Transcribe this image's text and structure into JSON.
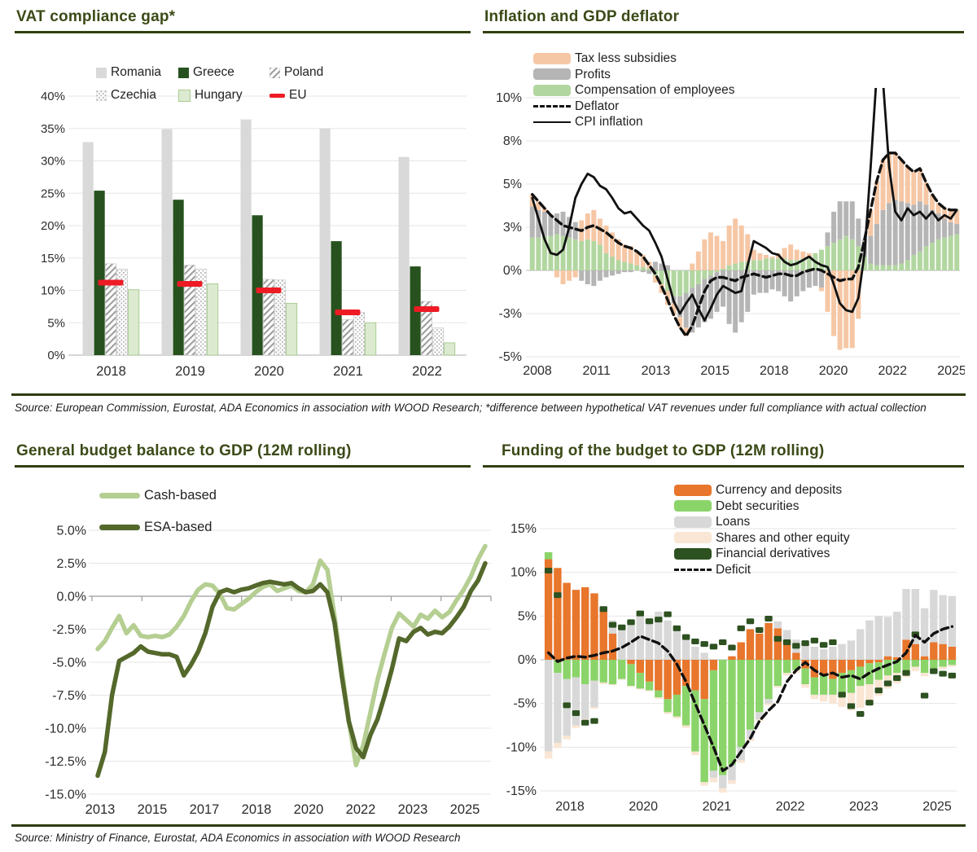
{
  "header": {
    "title_top_left": "VAT compliance gap*",
    "title_top_right": "Inflation and GDP deflator",
    "title_bottom_left": "General budget balance to GDP (12M rolling)",
    "title_bottom_right": "Funding of the budget to GDP (12M rolling)"
  },
  "sources": {
    "top": "Source: European Commission, Eurostat, ADA Economics in association with WOOD Research; *difference between hypothetical VAT revenues under full compliance with actual collection",
    "bottom": "Source: Ministry of Finance, Eurostat, ADA Economics in association with WOOD Research"
  },
  "colors": {
    "title_green": "#3b4a17",
    "rule_green": "#2e3c10",
    "gridline": "#e6e6e6",
    "axis_text": "#2e2e2e"
  },
  "chart_data": [
    {
      "id": "vat",
      "type": "bar",
      "title": "VAT compliance gap*",
      "ylim": [
        0,
        40
      ],
      "ytick_step": 5,
      "ytick_labels": [
        "40%",
        "35%",
        "30%",
        "25%",
        "20%",
        "15%",
        "10%",
        "5%",
        "0%"
      ],
      "categories": [
        "2018",
        "2019",
        "2020",
        "2021",
        "2022"
      ],
      "series": [
        {
          "name": "Romania",
          "swatch": "rect",
          "color": "#d9d9d9",
          "values": [
            32.9,
            34.9,
            36.4,
            35.0,
            30.6
          ]
        },
        {
          "name": "Greece",
          "swatch": "rect",
          "color": "#27521f",
          "values": [
            25.4,
            24.0,
            21.6,
            17.6,
            13.7
          ]
        },
        {
          "name": "Poland",
          "swatch": "hatch",
          "color": "#9d9d9d",
          "values": [
            14.1,
            13.9,
            11.7,
            5.5,
            8.3
          ]
        },
        {
          "name": "Czechia",
          "swatch": "dots",
          "color": "#b3b3b3",
          "values": [
            13.3,
            13.3,
            11.6,
            6.6,
            4.2
          ]
        },
        {
          "name": "Hungary",
          "swatch": "rect",
          "color": "#dcead0",
          "stroke": "#a9cc93",
          "values": [
            10.1,
            11.0,
            8.0,
            5.0,
            1.9
          ]
        },
        {
          "name": "EU",
          "swatch": "eu-dash",
          "type": "dash-marker",
          "color": "#ee1b24",
          "values": [
            11.2,
            11.0,
            10.0,
            6.6,
            7.1
          ]
        }
      ],
      "legend_position": "top-inside"
    },
    {
      "id": "inflation",
      "type": "stacked-bar-line",
      "title": "Inflation and GDP deflator",
      "x_start": 2008,
      "x_end": 2025.5,
      "frequency": "quarterly",
      "ylim": [
        -5,
        10
      ],
      "gridlines": [
        {
          "v": 10,
          "label": "10%"
        },
        {
          "v": 7.5,
          "label": "8%"
        },
        {
          "v": 5,
          "label": "5%"
        },
        {
          "v": 2.5,
          "label": "3%"
        },
        {
          "v": 0,
          "label": "0%"
        },
        {
          "v": -2.5,
          "label": "-3%"
        },
        {
          "v": -5,
          "label": "-5%"
        }
      ],
      "xticks": [
        "2008",
        "2011",
        "2013",
        "2015",
        "2018",
        "2020",
        "2022",
        "2025"
      ],
      "stack_draw_order": [
        2,
        1,
        0
      ],
      "bar_series": [
        {
          "name": "Tax less subsidies",
          "color": "#f6c7a5",
          "values": [
            0.7,
            0.5,
            0.2,
            0.0,
            -0.4,
            -0.8,
            -0.6,
            -0.4,
            1.2,
            1.5,
            1.8,
            1.5,
            1.6,
            1.4,
            1.2,
            1.0,
            1.0,
            0.8,
            0.7,
            0.4,
            -0.4,
            -0.5,
            -0.8,
            -0.7,
            -0.6,
            -0.5,
            0.4,
            1.1,
            1.8,
            2.2,
            2.0,
            1.6,
            2.3,
            2.6,
            2.1,
            1.6,
            0.6,
            0.4,
            0.2,
            0.1,
            0.3,
            0.6,
            0.9,
            0.6,
            0.4,
            0.2,
            0.0,
            -0.2,
            -2.4,
            -3.8,
            -4.6,
            -4.5,
            -4.5,
            -2.8,
            0.0,
            1.5,
            2.5,
            2.9,
            2.9,
            2.7,
            2.4,
            2.1,
            1.9,
            1.9,
            1.3,
            0.9,
            0.6,
            0.6,
            0.7,
            0.8
          ]
        },
        {
          "name": "Profits",
          "color": "#b5b5b5",
          "values": [
            1.8,
            1.6,
            1.4,
            1.2,
            1.2,
            1.4,
            1.2,
            1.0,
            -0.6,
            -0.8,
            -0.9,
            -0.6,
            -0.4,
            -0.3,
            -0.2,
            -0.1,
            -0.1,
            0.0,
            -0.1,
            -0.2,
            0.5,
            0.4,
            0.3,
            -0.4,
            -1.2,
            -2.0,
            -2.6,
            -2.5,
            -2.5,
            -2.5,
            -2.3,
            -2.1,
            -3.1,
            -3.6,
            -3.0,
            -2.4,
            -1.4,
            -1.3,
            -1.3,
            -1.1,
            -1.2,
            -1.5,
            -1.8,
            -1.5,
            -1.2,
            -1.0,
            -0.9,
            -1.0,
            0.8,
            1.8,
            2.2,
            2.0,
            2.2,
            1.6,
            1.0,
            1.6,
            2.4,
            3.2,
            3.6,
            3.8,
            3.6,
            3.3,
            2.9,
            2.9,
            2.4,
            1.9,
            1.5,
            1.1,
            0.8,
            0.6
          ]
        },
        {
          "name": "Compensation of employees",
          "color": "#b2d6a0",
          "values": [
            1.9,
            1.9,
            2.0,
            2.0,
            2.1,
            2.0,
            1.9,
            1.8,
            1.7,
            1.8,
            1.7,
            1.5,
            1.0,
            0.8,
            0.6,
            0.5,
            0.4,
            0.3,
            0.2,
            0.1,
            -0.3,
            -0.8,
            -1.2,
            -1.5,
            -1.5,
            -1.3,
            -1.0,
            -0.8,
            -0.5,
            -0.3,
            -0.1,
            0.1,
            0.3,
            0.4,
            0.5,
            0.5,
            0.6,
            0.6,
            0.7,
            0.7,
            0.7,
            0.7,
            0.6,
            0.6,
            0.7,
            0.8,
            1.0,
            1.2,
            1.4,
            1.6,
            1.8,
            2.0,
            1.8,
            1.4,
            0.8,
            0.4,
            0.3,
            0.3,
            0.3,
            0.3,
            0.4,
            0.6,
            0.9,
            1.1,
            1.4,
            1.6,
            1.8,
            1.9,
            2.0,
            2.1
          ]
        }
      ],
      "line_series": [
        {
          "name": "Deflator",
          "style": "dashed",
          "color": "#111111",
          "values": [
            4.4,
            4.0,
            3.6,
            3.2,
            2.9,
            2.6,
            2.5,
            2.4,
            2.3,
            2.5,
            2.6,
            2.4,
            2.2,
            1.9,
            1.6,
            1.4,
            1.3,
            1.1,
            0.8,
            0.3,
            -0.2,
            -0.9,
            -1.7,
            -2.6,
            -3.3,
            -3.8,
            -3.2,
            -2.2,
            -1.2,
            -0.6,
            -0.4,
            -0.4,
            -0.5,
            -0.6,
            -0.4,
            -0.3,
            -0.2,
            -0.3,
            -0.4,
            -0.3,
            -0.2,
            -0.2,
            -0.3,
            -0.3,
            -0.1,
            0.0,
            0.1,
            0.0,
            -0.2,
            -0.4,
            -0.6,
            -0.5,
            -0.5,
            0.2,
            1.8,
            3.5,
            5.2,
            6.4,
            6.8,
            6.8,
            6.4,
            6.0,
            5.7,
            5.9,
            5.1,
            4.4,
            3.9,
            3.6,
            3.5,
            3.5
          ]
        },
        {
          "name": "CPI inflation",
          "style": "solid",
          "color": "#111111",
          "values": [
            4.2,
            3.0,
            1.8,
            1.0,
            0.9,
            1.2,
            2.5,
            4.2,
            5.0,
            5.6,
            5.4,
            4.9,
            4.7,
            4.2,
            3.6,
            3.3,
            3.4,
            3.0,
            2.6,
            2.3,
            1.6,
            0.8,
            -0.5,
            -1.8,
            -2.5,
            -1.9,
            -1.4,
            -2.2,
            -2.9,
            -2.2,
            -1.4,
            -0.9,
            -1.1,
            -1.3,
            -1.2,
            0.3,
            1.7,
            1.5,
            1.3,
            1.0,
            0.9,
            0.5,
            0.3,
            0.4,
            0.6,
            0.8,
            0.5,
            0.3,
            0.2,
            -0.8,
            -1.9,
            -2.3,
            -2.4,
            -1.6,
            1.0,
            6.0,
            11.5,
            11.0,
            6.0,
            3.4,
            2.9,
            3.6,
            3.2,
            3.4,
            3.0,
            3.4,
            2.9,
            3.2,
            3.0,
            3.5
          ]
        }
      ],
      "legend_position": "top-left-inside"
    },
    {
      "id": "balance",
      "type": "line",
      "title": "General budget balance to GDP (12M rolling)",
      "x_start": 2013,
      "x_end": 2025.25,
      "frequency": "quarterly",
      "ylim": [
        -15,
        5
      ],
      "ytick_labels": [
        "5.0%",
        "2.5%",
        "0.0%",
        "-2.5%",
        "-5.0%",
        "-7.5%",
        "-10.0%",
        "-12.5%",
        "-15.0%"
      ],
      "xticks": [
        "2013",
        "2015",
        "2017",
        "2018",
        "2020",
        "2022",
        "2023",
        "2025"
      ],
      "series": [
        {
          "name": "Cash-based",
          "color": "#b5ce92",
          "values": [
            -4.0,
            -3.4,
            -2.4,
            -1.5,
            -2.8,
            -2.2,
            -3.0,
            -3.1,
            -3.0,
            -3.1,
            -2.9,
            -2.3,
            -1.5,
            -0.4,
            0.5,
            0.9,
            0.8,
            0.2,
            -0.9,
            -1.0,
            -0.6,
            -0.2,
            0.3,
            0.7,
            0.9,
            0.4,
            0.6,
            0.8,
            0.4,
            0.3,
            0.9,
            2.7,
            2.0,
            -1.5,
            -5.5,
            -9.5,
            -12.8,
            -11.3,
            -8.8,
            -6.3,
            -4.3,
            -2.4,
            -1.3,
            -1.8,
            -2.3,
            -1.4,
            -1.7,
            -1.1,
            -1.6,
            -1.2,
            -0.3,
            0.5,
            1.5,
            2.8,
            3.8
          ]
        },
        {
          "name": "ESA-based",
          "color": "#54682b",
          "values": [
            -13.6,
            -11.8,
            -7.5,
            -4.9,
            -4.6,
            -4.3,
            -3.8,
            -4.2,
            -4.3,
            -4.4,
            -4.4,
            -4.6,
            -6.0,
            -5.2,
            -4.2,
            -2.8,
            -0.8,
            0.3,
            0.5,
            0.3,
            0.5,
            0.6,
            0.8,
            1.0,
            1.1,
            1.0,
            0.9,
            1.0,
            0.6,
            0.3,
            0.4,
            0.9,
            0.3,
            -2.0,
            -6.0,
            -9.5,
            -11.5,
            -12.2,
            -10.5,
            -9.3,
            -7.5,
            -5.5,
            -3.2,
            -3.4,
            -2.7,
            -2.4,
            -2.9,
            -2.7,
            -2.8,
            -2.3,
            -1.6,
            -0.8,
            0.4,
            1.2,
            2.5
          ]
        }
      ],
      "legend_position": "top-left-inside"
    },
    {
      "id": "funding",
      "type": "stacked-bar-line",
      "title": "Funding of the budget to GDP (12M rolling)",
      "x_start": 2018,
      "x_end": 2025.4,
      "frequency": "bi-monthly",
      "ylim": [
        -15,
        15
      ],
      "gridlines": [
        {
          "v": 15,
          "label": "15%"
        },
        {
          "v": 10,
          "label": "10%"
        },
        {
          "v": 5,
          "label": "5%"
        },
        {
          "v": 0,
          "label": "0%"
        },
        {
          "v": -5,
          "label": "-5%"
        },
        {
          "v": -10,
          "label": "-10%"
        },
        {
          "v": -15,
          "label": "-15%"
        }
      ],
      "xticks": [
        "2018",
        "2020",
        "2021",
        "2022",
        "2023",
        "2025"
      ],
      "stack_draw_order": [
        0,
        1,
        2,
        3
      ],
      "bar_series": [
        {
          "name": "Currency and deposits",
          "color": "#e8762c",
          "values": [
            11.5,
            10.5,
            8.8,
            8.0,
            8.3,
            7.6,
            5.6,
            3.0,
            0.0,
            -0.5,
            -1.5,
            -2.5,
            -3.5,
            -4.5,
            -4.0,
            -3.0,
            -3.5,
            -4.5,
            -1.2,
            0.0,
            0.4,
            2.0,
            3.5,
            3.0,
            4.2,
            3.6,
            2.2,
            0.8,
            -1.0,
            -2.0,
            -1.8,
            -2.2,
            -1.5,
            -1.2,
            -0.8,
            -0.4,
            -0.3,
            0.4,
            0.3,
            2.3,
            1.8,
            0.4,
            2.0,
            1.8,
            1.5
          ]
        },
        {
          "name": "Debt securities",
          "color": "#8bd46a",
          "values": [
            0.8,
            -1.5,
            -2.2,
            -2.0,
            -2.8,
            -2.4,
            -2.6,
            -2.8,
            -2.2,
            -2.5,
            -1.8,
            -1.0,
            -0.8,
            -1.5,
            -2.5,
            -4.5,
            -7.0,
            -9.5,
            -11.5,
            -13.2,
            -12.0,
            -10.0,
            -8.0,
            -6.0,
            -4.5,
            -3.0,
            -1.5,
            -1.2,
            -1.8,
            -2.0,
            -2.2,
            -1.8,
            -2.4,
            -2.6,
            -2.2,
            -2.4,
            -2.0,
            -1.8,
            -1.5,
            -1.2,
            -0.8,
            -1.5,
            -1.0,
            -0.8,
            -0.6
          ]
        },
        {
          "name": "Loans",
          "color": "#d8d8d8",
          "values": [
            -10.5,
            -8.0,
            -6.5,
            -5.5,
            -4.0,
            -3.0,
            0.5,
            1.5,
            3.5,
            4.5,
            5.2,
            4.8,
            5.5,
            4.5,
            3.5,
            2.5,
            1.5,
            0.8,
            -0.8,
            -1.5,
            -1.8,
            -1.5,
            -1.0,
            -0.8,
            -0.5,
            0.8,
            1.2,
            1.5,
            1.8,
            1.5,
            1.2,
            1.5,
            1.8,
            2.2,
            3.5,
            4.5,
            5.0,
            4.5,
            5.2,
            5.8,
            6.3,
            5.5,
            6.0,
            5.6,
            5.8
          ]
        },
        {
          "name": "Shares and other equity",
          "color": "#fae6d4",
          "values": [
            -0.8,
            -0.6,
            -0.4,
            -0.3,
            -0.2,
            -0.2,
            -0.2,
            -0.1,
            -0.1,
            -0.1,
            -0.1,
            -0.1,
            -0.2,
            -0.2,
            -0.2,
            -0.3,
            -0.4,
            -0.4,
            -0.5,
            -0.5,
            -0.4,
            -0.3,
            -0.3,
            -0.2,
            -0.2,
            -0.2,
            -0.3,
            -0.3,
            -0.4,
            -0.5,
            -0.8,
            -1.0,
            -1.5,
            -2.0,
            -2.5,
            -2.2,
            -1.8,
            -1.5,
            -1.2,
            -0.8,
            -0.5,
            -0.4,
            -0.3,
            -0.3,
            -0.2
          ]
        }
      ],
      "marker_series": {
        "name": "Financial derivatives",
        "color": "#2d5120",
        "values": [
          10.2,
          7.4,
          -5.2,
          -6.1,
          -7.2,
          -7.0,
          5.8,
          4.0,
          3.7,
          4.3,
          5.3,
          4.4,
          4.6,
          5.2,
          3.6,
          2.6,
          2.1,
          1.8,
          1.5,
          2.0,
          1.4,
          3.6,
          4.4,
          3.4,
          4.7,
          2.4,
          2.0,
          1.6,
          1.9,
          2.2,
          1.7,
          2.0,
          -4.0,
          -5.3,
          -6.2,
          -4.9,
          -3.5,
          -2.7,
          -2.1,
          -1.5,
          2.9,
          -4.1,
          -1.3,
          -1.6,
          -1.8
        ]
      },
      "line_series": [
        {
          "name": "Deficit",
          "style": "dashed",
          "color": "#111111",
          "values": [
            0.8,
            -0.2,
            0.2,
            0.4,
            0.3,
            0.5,
            0.8,
            1.0,
            1.4,
            2.0,
            2.7,
            2.3,
            1.9,
            1.0,
            -0.5,
            -2.5,
            -5.0,
            -7.5,
            -10.0,
            -12.7,
            -12.0,
            -10.5,
            -9.0,
            -7.0,
            -5.8,
            -4.8,
            -2.5,
            -1.2,
            -0.3,
            -1.2,
            -1.8,
            -1.5,
            -2.0,
            -1.8,
            -2.2,
            -1.5,
            -1.0,
            -0.6,
            -0.2,
            0.8,
            2.8,
            2.0,
            3.0,
            3.5,
            3.8
          ]
        }
      ],
      "legend_position": "top-right-inside"
    }
  ]
}
